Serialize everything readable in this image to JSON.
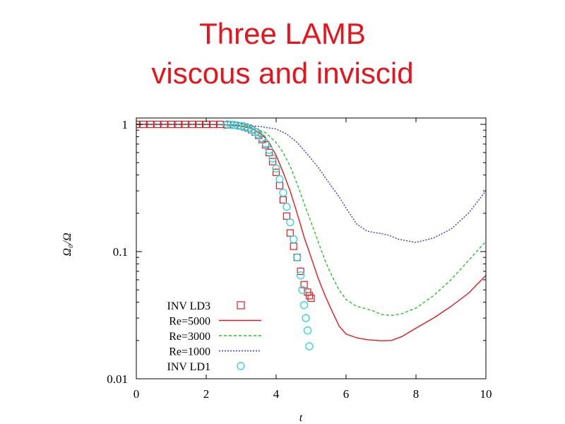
{
  "slide": {
    "title_line1": "Three LAMB",
    "title_line2": "viscous and inviscid",
    "title_color": "#e8141c"
  },
  "chart_data": {
    "type": "line",
    "title": "",
    "xlabel": "t",
    "ylabel": "Ω₀/Ω",
    "xlim": [
      0,
      10
    ],
    "ylim": [
      0.01,
      1
    ],
    "yscale": "log",
    "x_ticks": [
      0,
      2,
      4,
      6,
      8,
      10
    ],
    "x_tick_labels": [
      "0",
      "2",
      "4",
      "6",
      "8",
      "10"
    ],
    "y_ticks": [
      1,
      0.1,
      0.01
    ],
    "y_tick_labels": [
      "1",
      "0.1",
      "0.01"
    ],
    "grid": false,
    "legend_position": "bottom-left",
    "series": [
      {
        "name": "INV LD3",
        "style": "markers",
        "marker": "square",
        "color": "#e41a1c",
        "points": [
          [
            0,
            1
          ],
          [
            0.2,
            1
          ],
          [
            0.4,
            1
          ],
          [
            0.6,
            1
          ],
          [
            0.8,
            1
          ],
          [
            1,
            1
          ],
          [
            1.2,
            1
          ],
          [
            1.4,
            1
          ],
          [
            1.6,
            1
          ],
          [
            1.8,
            1
          ],
          [
            2,
            1
          ],
          [
            2.2,
            1
          ],
          [
            2.4,
            1
          ],
          [
            2.6,
            0.99
          ],
          [
            2.8,
            0.985
          ],
          [
            3,
            0.97
          ],
          [
            3.1,
            0.955
          ],
          [
            3.2,
            0.935
          ],
          [
            3.3,
            0.905
          ],
          [
            3.4,
            0.87
          ],
          [
            3.5,
            0.82
          ],
          [
            3.6,
            0.76
          ],
          [
            3.7,
            0.69
          ],
          [
            3.8,
            0.6
          ],
          [
            3.9,
            0.51
          ],
          [
            4,
            0.42
          ],
          [
            4.1,
            0.33
          ],
          [
            4.2,
            0.255
          ],
          [
            4.3,
            0.19
          ],
          [
            4.4,
            0.14
          ],
          [
            4.5,
            0.11
          ],
          [
            4.6,
            0.09
          ],
          [
            4.7,
            0.07
          ],
          [
            4.8,
            0.055
          ],
          [
            4.9,
            0.048
          ],
          [
            4.95,
            0.045
          ],
          [
            5,
            0.043
          ]
        ]
      },
      {
        "name": "Re=5000",
        "style": "solid",
        "color": "#e41a1c",
        "points": [
          [
            0,
            1
          ],
          [
            1,
            1
          ],
          [
            2,
            1
          ],
          [
            2.5,
            0.995
          ],
          [
            3,
            0.97
          ],
          [
            3.3,
            0.93
          ],
          [
            3.6,
            0.83
          ],
          [
            3.8,
            0.72
          ],
          [
            4,
            0.57
          ],
          [
            4.2,
            0.42
          ],
          [
            4.4,
            0.3
          ],
          [
            4.6,
            0.2
          ],
          [
            4.8,
            0.13
          ],
          [
            5,
            0.09
          ],
          [
            5.2,
            0.062
          ],
          [
            5.4,
            0.045
          ],
          [
            5.6,
            0.034
          ],
          [
            5.8,
            0.026
          ],
          [
            6,
            0.0225
          ],
          [
            6.3,
            0.021
          ],
          [
            6.6,
            0.0203
          ],
          [
            7,
            0.0199
          ],
          [
            7.3,
            0.02
          ],
          [
            7.6,
            0.0215
          ],
          [
            8,
            0.025
          ],
          [
            8.5,
            0.03
          ],
          [
            9,
            0.037
          ],
          [
            9.5,
            0.047
          ],
          [
            10,
            0.065
          ]
        ]
      },
      {
        "name": "Re=3000",
        "style": "dashed",
        "color": "#22c422",
        "points": [
          [
            0,
            1
          ],
          [
            1,
            1
          ],
          [
            2,
            1
          ],
          [
            2.5,
            0.995
          ],
          [
            3,
            0.975
          ],
          [
            3.4,
            0.93
          ],
          [
            3.7,
            0.86
          ],
          [
            4,
            0.72
          ],
          [
            4.2,
            0.6
          ],
          [
            4.4,
            0.47
          ],
          [
            4.6,
            0.34
          ],
          [
            4.8,
            0.24
          ],
          [
            5,
            0.17
          ],
          [
            5.2,
            0.12
          ],
          [
            5.4,
            0.085
          ],
          [
            5.6,
            0.064
          ],
          [
            5.8,
            0.05
          ],
          [
            6,
            0.042
          ],
          [
            6.3,
            0.037
          ],
          [
            6.5,
            0.036
          ],
          [
            6.8,
            0.034
          ],
          [
            7,
            0.032
          ],
          [
            7.3,
            0.0315
          ],
          [
            7.6,
            0.0325
          ],
          [
            8,
            0.036
          ],
          [
            8.5,
            0.045
          ],
          [
            9,
            0.06
          ],
          [
            9.5,
            0.085
          ],
          [
            10,
            0.12
          ]
        ]
      },
      {
        "name": "Re=1000",
        "style": "dotted",
        "color": "#2c3fd6",
        "points": [
          [
            0,
            1
          ],
          [
            1,
            1
          ],
          [
            2,
            1
          ],
          [
            2.5,
            0.995
          ],
          [
            3,
            0.985
          ],
          [
            3.5,
            0.965
          ],
          [
            4,
            0.92
          ],
          [
            4.3,
            0.84
          ],
          [
            4.6,
            0.72
          ],
          [
            4.9,
            0.58
          ],
          [
            5.2,
            0.46
          ],
          [
            5.5,
            0.35
          ],
          [
            5.8,
            0.27
          ],
          [
            6,
            0.22
          ],
          [
            6.3,
            0.165
          ],
          [
            6.6,
            0.145
          ],
          [
            6.9,
            0.14
          ],
          [
            7.2,
            0.135
          ],
          [
            7.5,
            0.125
          ],
          [
            8,
            0.118
          ],
          [
            8.5,
            0.128
          ],
          [
            9,
            0.15
          ],
          [
            9.5,
            0.2
          ],
          [
            10,
            0.3
          ]
        ]
      },
      {
        "name": "INV LD1",
        "style": "markers",
        "marker": "circle",
        "color": "#33d6e0",
        "points": [
          [
            2.6,
            1
          ],
          [
            2.7,
            0.995
          ],
          [
            2.8,
            0.99
          ],
          [
            2.9,
            0.98
          ],
          [
            3,
            0.97
          ],
          [
            3.1,
            0.955
          ],
          [
            3.2,
            0.935
          ],
          [
            3.3,
            0.905
          ],
          [
            3.4,
            0.87
          ],
          [
            3.5,
            0.83
          ],
          [
            3.6,
            0.78
          ],
          [
            3.7,
            0.71
          ],
          [
            3.8,
            0.63
          ],
          [
            3.9,
            0.54
          ],
          [
            4,
            0.45
          ],
          [
            4.1,
            0.37
          ],
          [
            4.2,
            0.29
          ],
          [
            4.3,
            0.225
          ],
          [
            4.4,
            0.17
          ],
          [
            4.5,
            0.125
          ],
          [
            4.6,
            0.09
          ],
          [
            4.7,
            0.065
          ],
          [
            4.75,
            0.05
          ],
          [
            4.8,
            0.038
          ],
          [
            4.85,
            0.03
          ],
          [
            4.9,
            0.024
          ],
          [
            4.95,
            0.018
          ]
        ]
      }
    ]
  }
}
